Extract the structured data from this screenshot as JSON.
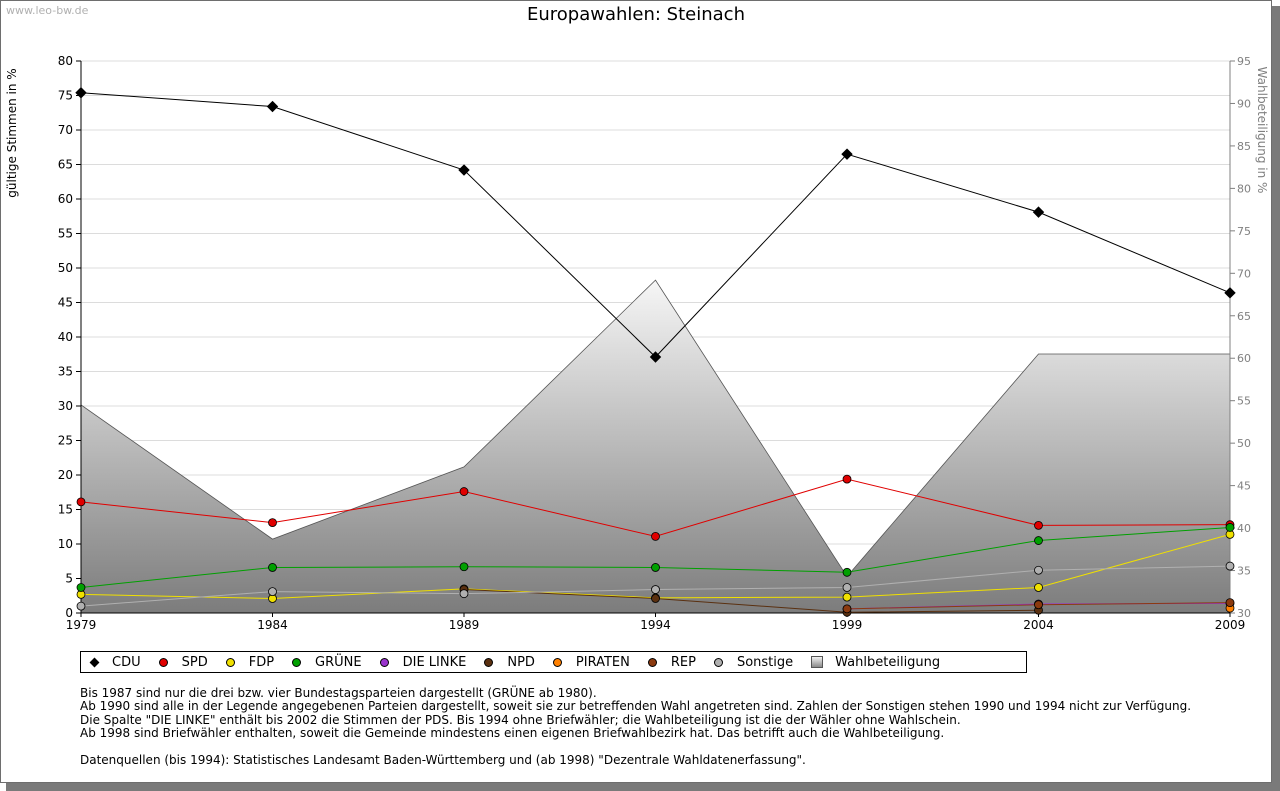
{
  "watermark": "www.leo-bw.de",
  "title": "Europawahlen: Steinach",
  "chart_data": {
    "type": "line",
    "x": [
      "1979",
      "1984",
      "1989",
      "1994",
      "1999",
      "2004",
      "2009"
    ],
    "ylabel": "gültige Stimmen in %",
    "y2label": "Wahlbeteiligung in %",
    "ylim": [
      0,
      80
    ],
    "y2lim": [
      30,
      95
    ],
    "yticks": [
      0,
      5,
      10,
      15,
      20,
      25,
      30,
      35,
      40,
      45,
      50,
      55,
      60,
      65,
      70,
      75,
      80
    ],
    "y2ticks": [
      30,
      35,
      40,
      45,
      50,
      55,
      60,
      65,
      70,
      75,
      80,
      85,
      90,
      95
    ],
    "grid": true,
    "legend_position": "bottom",
    "series": [
      {
        "name": "CDU",
        "color": "#000000",
        "marker": "diamond",
        "values": [
          75.4,
          73.4,
          64.2,
          37.1,
          66.5,
          58.1,
          46.4
        ]
      },
      {
        "name": "SPD",
        "color": "#e00000",
        "marker": "circle",
        "values": [
          16.1,
          13.1,
          17.6,
          11.1,
          19.4,
          12.7,
          12.8
        ]
      },
      {
        "name": "FDP",
        "color": "#f0e000",
        "marker": "circle",
        "values": [
          2.7,
          2.1,
          3.5,
          2.2,
          2.3,
          3.7,
          11.4
        ]
      },
      {
        "name": "GRÜNE",
        "color": "#00a000",
        "marker": "circle",
        "values": [
          3.7,
          6.6,
          6.7,
          6.6,
          5.9,
          10.5,
          12.4
        ]
      },
      {
        "name": "DIE LINKE",
        "color": "#9933cc",
        "marker": "circle",
        "values": [
          null,
          null,
          null,
          null,
          0.6,
          1.3,
          1.4
        ]
      },
      {
        "name": "NPD",
        "color": "#5a3010",
        "marker": "circle",
        "values": [
          null,
          null,
          3.4,
          2.1,
          0.1,
          0.4,
          null
        ]
      },
      {
        "name": "PIRATEN",
        "color": "#ff8000",
        "marker": "circle",
        "values": [
          null,
          null,
          null,
          null,
          null,
          null,
          0.7
        ]
      },
      {
        "name": "REP",
        "color": "#8b3a0f",
        "marker": "circle",
        "values": [
          null,
          null,
          null,
          null,
          0.6,
          1.2,
          1.5
        ]
      },
      {
        "name": "Sonstige",
        "color": "#b0b0b0",
        "marker": "circle",
        "values": [
          1.0,
          3.1,
          2.8,
          3.4,
          3.7,
          6.2,
          6.8
        ]
      }
    ],
    "area": {
      "name": "Wahlbeteiligung",
      "values": [
        54.5,
        38.7,
        47.2,
        69.2,
        34.3,
        60.5,
        60.5
      ]
    }
  },
  "notes": [
    "Bis 1987 sind nur die drei bzw. vier Bundestagsparteien dargestellt (GRÜNE ab 1980).",
    "Ab 1990 sind alle in der Legende angegebenen Parteien dargestellt, soweit sie zur betreffenden Wahl angetreten sind. Zahlen der Sonstigen stehen 1990 und 1994 nicht zur Verfügung.",
    "Die Spalte \"DIE LINKE\" enthält bis 2002 die Stimmen der PDS. Bis 1994 ohne Briefwähler; die Wahlbeteiligung ist die der Wähler ohne Wahlschein.",
    "Ab 1998 sind Briefwähler enthalten, soweit die Gemeinde mindestens einen eigenen Briefwahlbezirk hat. Das betrifft auch die Wahlbeteiligung."
  ],
  "source": "Datenquellen (bis 1994): Statistisches Landesamt Baden-Württemberg und (ab 1998) \"Dezentrale Wahldatenerfassung\"."
}
